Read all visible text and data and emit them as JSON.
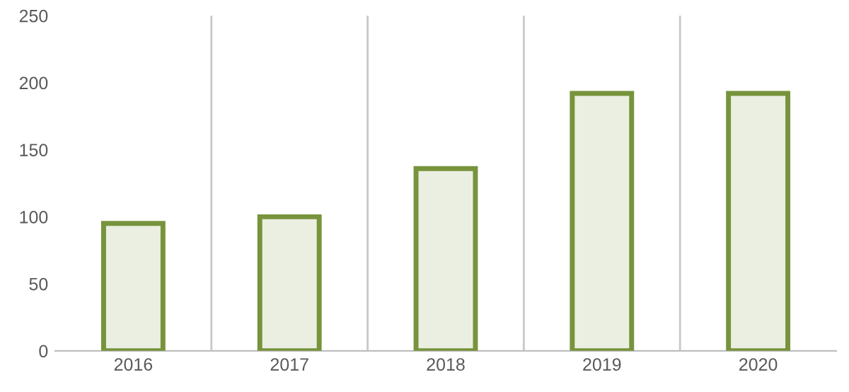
{
  "chart_data": {
    "type": "bar",
    "categories": [
      "2016",
      "2017",
      "2018",
      "2019",
      "2020"
    ],
    "values": [
      95,
      100,
      136,
      192,
      192
    ],
    "color": "#77933c",
    "ylim": [
      0,
      250
    ],
    "yticks": [
      0,
      50,
      100,
      150,
      200,
      250
    ],
    "grid": "x"
  }
}
